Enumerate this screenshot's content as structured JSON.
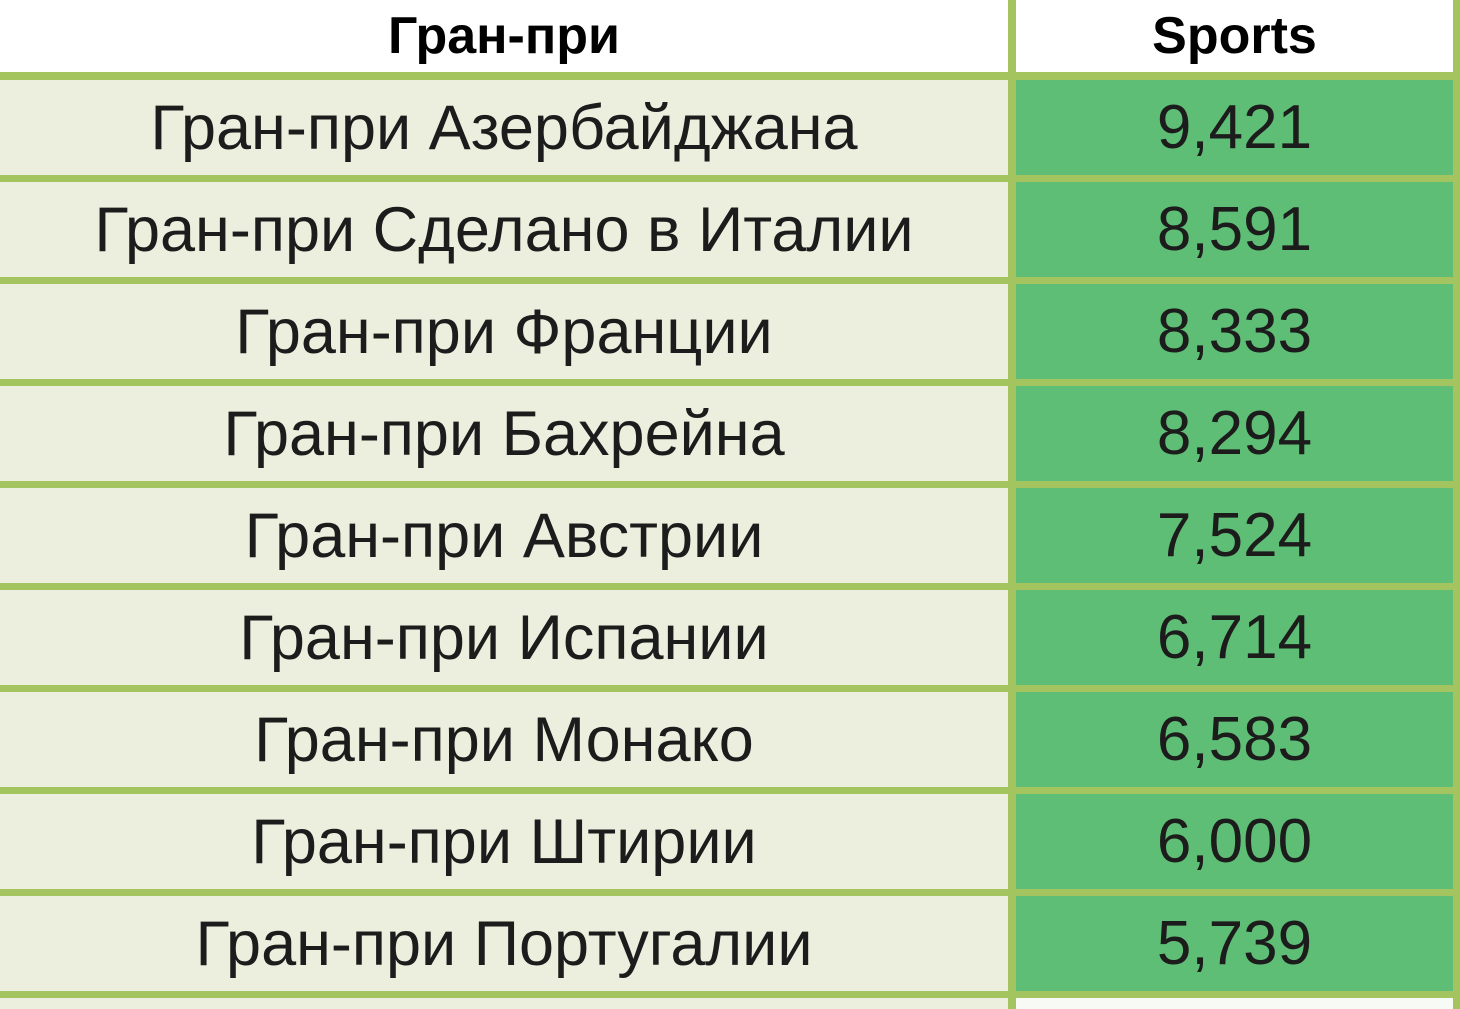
{
  "table": {
    "columns": {
      "name": "Гран-при",
      "value": "Sports"
    },
    "rows": [
      {
        "name": "Гран-при Азербайджана",
        "value": "9,421"
      },
      {
        "name": "Гран-при Сделано в Италии",
        "value": "8,591"
      },
      {
        "name": "Гран-при Франции",
        "value": "8,333"
      },
      {
        "name": "Гран-при Бахрейна",
        "value": "8,294"
      },
      {
        "name": "Гран-при Австрии",
        "value": "7,524"
      },
      {
        "name": "Гран-при Испании",
        "value": "6,714"
      },
      {
        "name": "Гран-при Монако",
        "value": "6,583"
      },
      {
        "name": "Гран-при Штирии",
        "value": "6,000"
      },
      {
        "name": "Гран-при Португалии",
        "value": "5,739"
      }
    ]
  },
  "colors": {
    "header_bg": "#ffffff",
    "name_cell_bg": "#ecefde",
    "value_cell_bg": "#5fbe76",
    "border": "#a3c45e",
    "text": "#1c1c1c",
    "header_text": "#000000"
  },
  "chart_data": {
    "type": "table",
    "columns": [
      "Гран-при",
      "Sports"
    ],
    "categories": [
      "Гран-при Азербайджана",
      "Гран-при Сделано в Италии",
      "Гран-при Франции",
      "Гран-при Бахрейна",
      "Гран-при Австрии",
      "Гран-при Испании",
      "Гран-при Монако",
      "Гран-при Штирии",
      "Гран-при Португалии"
    ],
    "values": [
      9421,
      8591,
      8333,
      8294,
      7524,
      6714,
      6583,
      6000,
      5739
    ],
    "title": "",
    "legend": "none",
    "notes": "two-column data table, values formatted with thousands separators"
  }
}
